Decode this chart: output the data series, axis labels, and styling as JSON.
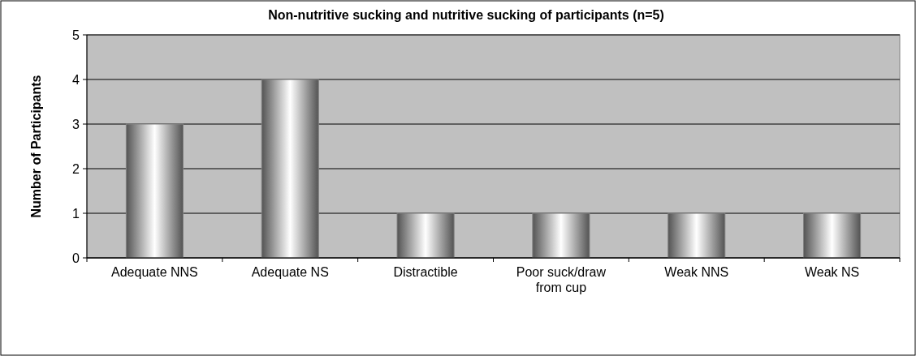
{
  "chart_data": {
    "type": "bar",
    "title": "Non-nutritive sucking and nutritive sucking of participants (n=5)",
    "ylabel": "Number of Participants",
    "categories": [
      "Adequate NNS",
      "Adequate NS",
      "Distractible",
      "Poor suck/draw from cup",
      "Weak NNS",
      "Weak NS"
    ],
    "values": [
      3,
      4,
      1,
      1,
      1,
      1
    ],
    "color": "#808080",
    "ylim": [
      0,
      5
    ],
    "yticks": [
      0,
      1,
      2,
      3,
      4,
      5
    ],
    "grid": "y"
  }
}
